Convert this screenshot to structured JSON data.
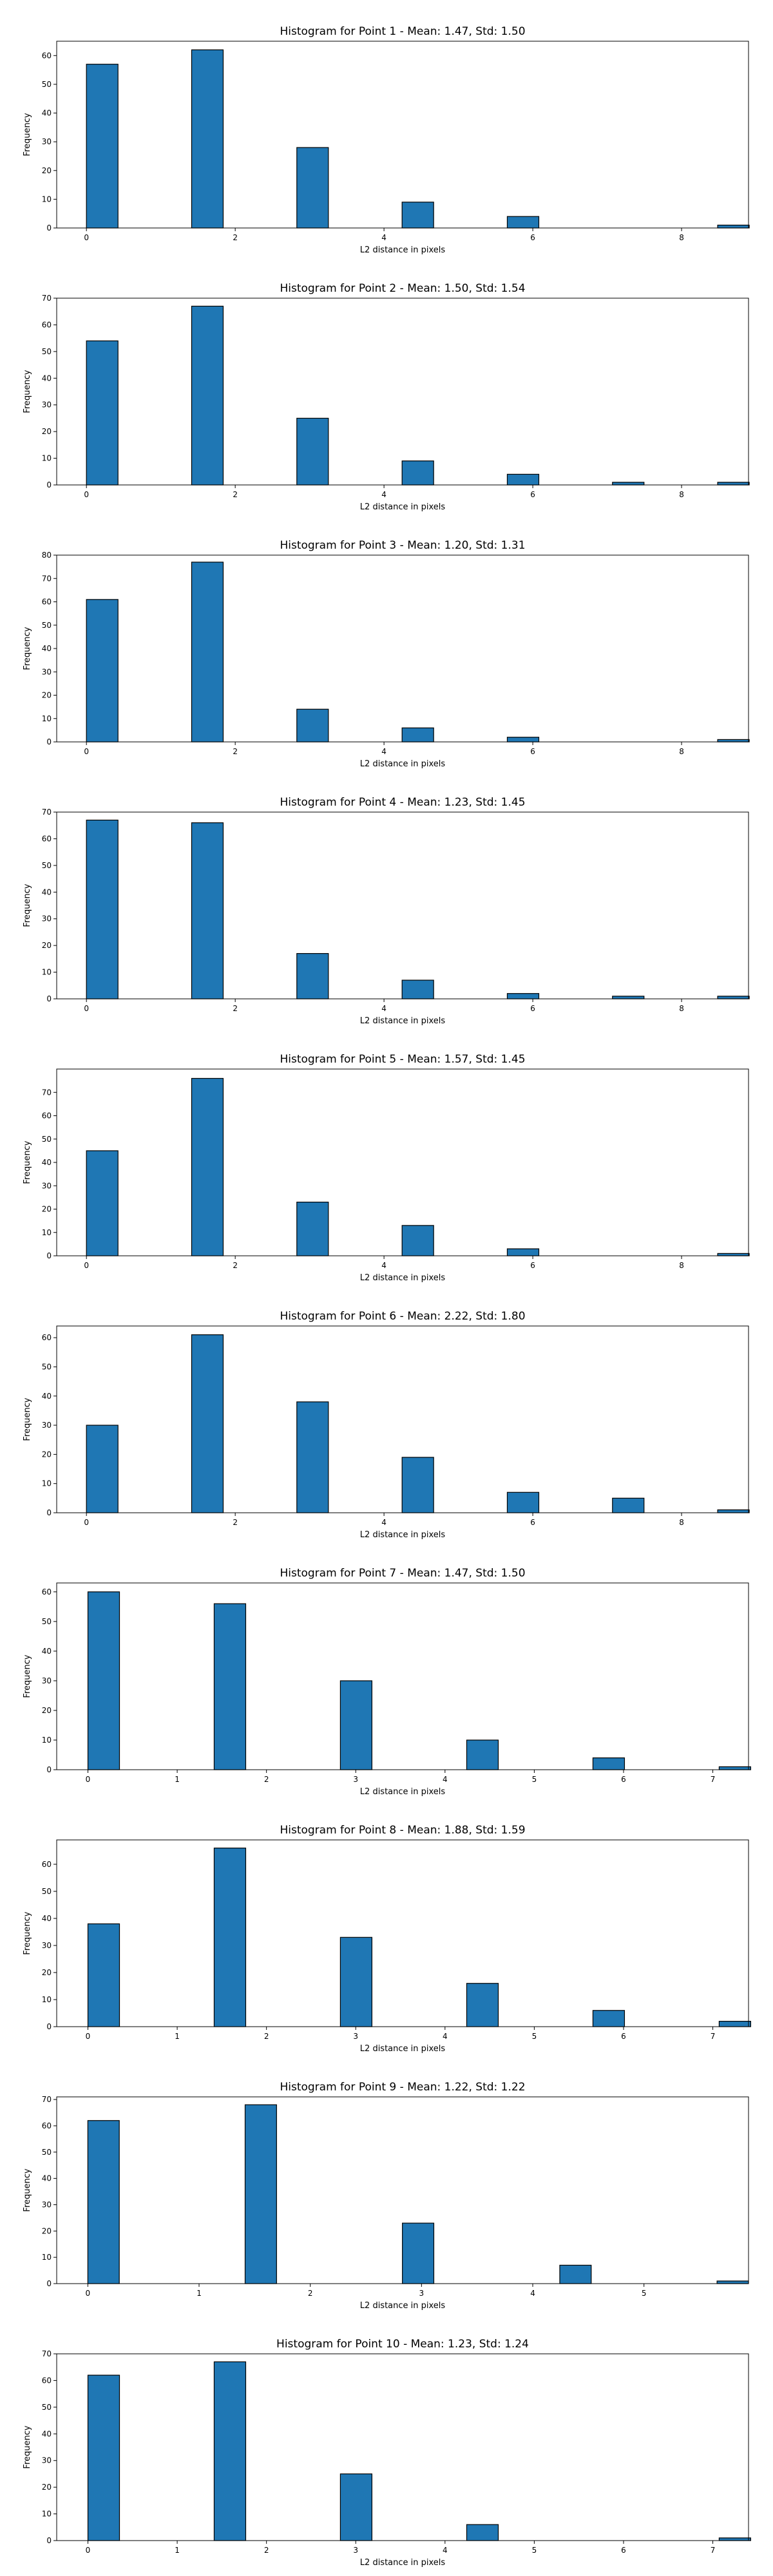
{
  "style": {
    "bar_color": "#1f77b4",
    "edge_color": "#000000",
    "background": "#ffffff"
  },
  "chart_data": [
    {
      "type": "bar",
      "title": "Histogram for Point 1 - Mean: 1.47, Std: 1.50",
      "xlabel": "L2 distance in pixels",
      "ylabel": "Frequency",
      "xlim": [
        -0.4,
        8.9
      ],
      "ylim": [
        0,
        65
      ],
      "xticks": [
        0,
        2,
        4,
        6,
        8
      ],
      "yticks": [
        0,
        10,
        20,
        30,
        40,
        50,
        60
      ],
      "bin_width": 0.4243,
      "x": [
        0.0,
        1.0,
        1.414,
        2.0,
        2.236,
        2.828,
        3.0,
        3.162,
        3.606,
        4.0,
        4.243,
        4.472,
        5.0,
        5.657,
        5.831,
        6.0,
        6.325,
        6.708,
        7.0,
        7.071,
        7.211,
        7.616,
        7.81,
        8.0,
        8.485
      ],
      "values": [
        57,
        0,
        62,
        0,
        0,
        28,
        0,
        0,
        0,
        0,
        9,
        0,
        0,
        4,
        0,
        0,
        0,
        0,
        0,
        0,
        0,
        0,
        0,
        0,
        1
      ]
    },
    {
      "type": "bar",
      "title": "Histogram for Point 2 - Mean: 1.50, Std: 1.54",
      "xlabel": "L2 distance in pixels",
      "ylabel": "Frequency",
      "xlim": [
        -0.4,
        8.9
      ],
      "ylim": [
        0,
        70
      ],
      "xticks": [
        0,
        2,
        4,
        6,
        8
      ],
      "yticks": [
        0,
        10,
        20,
        30,
        40,
        50,
        60,
        70
      ],
      "bin_width": 0.4243,
      "x": [
        0.0,
        1.414,
        2.828,
        4.243,
        5.657,
        7.071,
        8.485
      ],
      "values": [
        54,
        67,
        25,
        9,
        4,
        1,
        1
      ]
    },
    {
      "type": "bar",
      "title": "Histogram for Point 3 - Mean: 1.20, Std: 1.31",
      "xlabel": "L2 distance in pixels",
      "ylabel": "Frequency",
      "xlim": [
        -0.4,
        8.9
      ],
      "ylim": [
        0,
        80
      ],
      "xticks": [
        0,
        2,
        4,
        6,
        8
      ],
      "yticks": [
        0,
        10,
        20,
        30,
        40,
        50,
        60,
        70,
        80
      ],
      "bin_width": 0.4243,
      "x": [
        0.0,
        1.414,
        2.828,
        4.243,
        5.657,
        8.485
      ],
      "values": [
        61,
        77,
        14,
        6,
        2,
        1
      ]
    },
    {
      "type": "bar",
      "title": "Histogram for Point 4 - Mean: 1.23, Std: 1.45",
      "xlabel": "L2 distance in pixels",
      "ylabel": "Frequency",
      "xlim": [
        -0.4,
        8.9
      ],
      "ylim": [
        0,
        70
      ],
      "xticks": [
        0,
        2,
        4,
        6,
        8
      ],
      "yticks": [
        0,
        10,
        20,
        30,
        40,
        50,
        60,
        70
      ],
      "bin_width": 0.4243,
      "x": [
        0.0,
        1.414,
        2.828,
        4.243,
        5.657,
        7.071,
        8.485
      ],
      "values": [
        67,
        66,
        17,
        7,
        2,
        1,
        1
      ]
    },
    {
      "type": "bar",
      "title": "Histogram for Point 5 - Mean: 1.57, Std: 1.45",
      "xlabel": "L2 distance in pixels",
      "ylabel": "Frequency",
      "xlim": [
        -0.4,
        8.9
      ],
      "ylim": [
        0,
        80
      ],
      "xticks": [
        0,
        2,
        4,
        6,
        8
      ],
      "yticks": [
        0,
        10,
        20,
        30,
        40,
        50,
        60,
        70
      ],
      "bin_width": 0.4243,
      "x": [
        0.0,
        1.414,
        2.828,
        4.243,
        5.657,
        8.485
      ],
      "values": [
        45,
        76,
        23,
        13,
        3,
        1
      ]
    },
    {
      "type": "bar",
      "title": "Histogram for Point 6 - Mean: 2.22, Std: 1.80",
      "xlabel": "L2 distance in pixels",
      "ylabel": "Frequency",
      "xlim": [
        -0.4,
        8.9
      ],
      "ylim": [
        0,
        64
      ],
      "xticks": [
        0,
        2,
        4,
        6,
        8
      ],
      "yticks": [
        0,
        10,
        20,
        30,
        40,
        50,
        60
      ],
      "bin_width": 0.4243,
      "x": [
        0.0,
        1.414,
        2.828,
        4.243,
        5.657,
        7.071,
        8.485
      ],
      "values": [
        30,
        61,
        38,
        19,
        7,
        5,
        1
      ]
    },
    {
      "type": "bar",
      "title": "Histogram for Point 7 - Mean: 1.47, Std: 1.50",
      "xlabel": "L2 distance in pixels",
      "ylabel": "Frequency",
      "xlim": [
        -0.35,
        7.4
      ],
      "ylim": [
        0,
        63
      ],
      "xticks": [
        0,
        1,
        2,
        3,
        4,
        5,
        6,
        7
      ],
      "yticks": [
        0,
        10,
        20,
        30,
        40,
        50,
        60
      ],
      "bin_width": 0.3536,
      "x": [
        0.0,
        1.414,
        2.828,
        4.243,
        5.657,
        7.071
      ],
      "values": [
        60,
        56,
        30,
        10,
        4,
        1
      ]
    },
    {
      "type": "bar",
      "title": "Histogram for Point 8 - Mean: 1.88, Std: 1.59",
      "xlabel": "L2 distance in pixels",
      "ylabel": "Frequency",
      "xlim": [
        -0.35,
        7.4
      ],
      "ylim": [
        0,
        69
      ],
      "xticks": [
        0,
        1,
        2,
        3,
        4,
        5,
        6,
        7
      ],
      "yticks": [
        0,
        10,
        20,
        30,
        40,
        50,
        60
      ],
      "bin_width": 0.3536,
      "x": [
        0.0,
        1.414,
        2.828,
        4.243,
        5.657,
        7.071
      ],
      "values": [
        38,
        66,
        33,
        16,
        6,
        2
      ]
    },
    {
      "type": "bar",
      "title": "Histogram for Point 9 - Mean: 1.22, Std: 1.22",
      "xlabel": "L2 distance in pixels",
      "ylabel": "Frequency",
      "xlim": [
        -0.28,
        5.94
      ],
      "ylim": [
        0,
        71
      ],
      "xticks": [
        0,
        1,
        2,
        3,
        4,
        5
      ],
      "yticks": [
        0,
        10,
        20,
        30,
        40,
        50,
        60,
        70
      ],
      "bin_width": 0.2828,
      "x": [
        0.0,
        1.414,
        2.828,
        4.243,
        5.657
      ],
      "values": [
        62,
        68,
        23,
        7,
        1
      ]
    },
    {
      "type": "bar",
      "title": "Histogram for Point 10 - Mean: 1.23, Std: 1.24",
      "xlabel": "L2 distance in pixels",
      "ylabel": "Frequency",
      "xlim": [
        -0.35,
        7.4
      ],
      "ylim": [
        0,
        70
      ],
      "xticks": [
        0,
        1,
        2,
        3,
        4,
        5,
        6,
        7
      ],
      "yticks": [
        0,
        10,
        20,
        30,
        40,
        50,
        60,
        70
      ],
      "bin_width": 0.3536,
      "x": [
        0.0,
        1.414,
        2.828,
        4.243,
        5.657,
        7.071
      ],
      "values": [
        62,
        67,
        25,
        6,
        0,
        1
      ]
    }
  ]
}
